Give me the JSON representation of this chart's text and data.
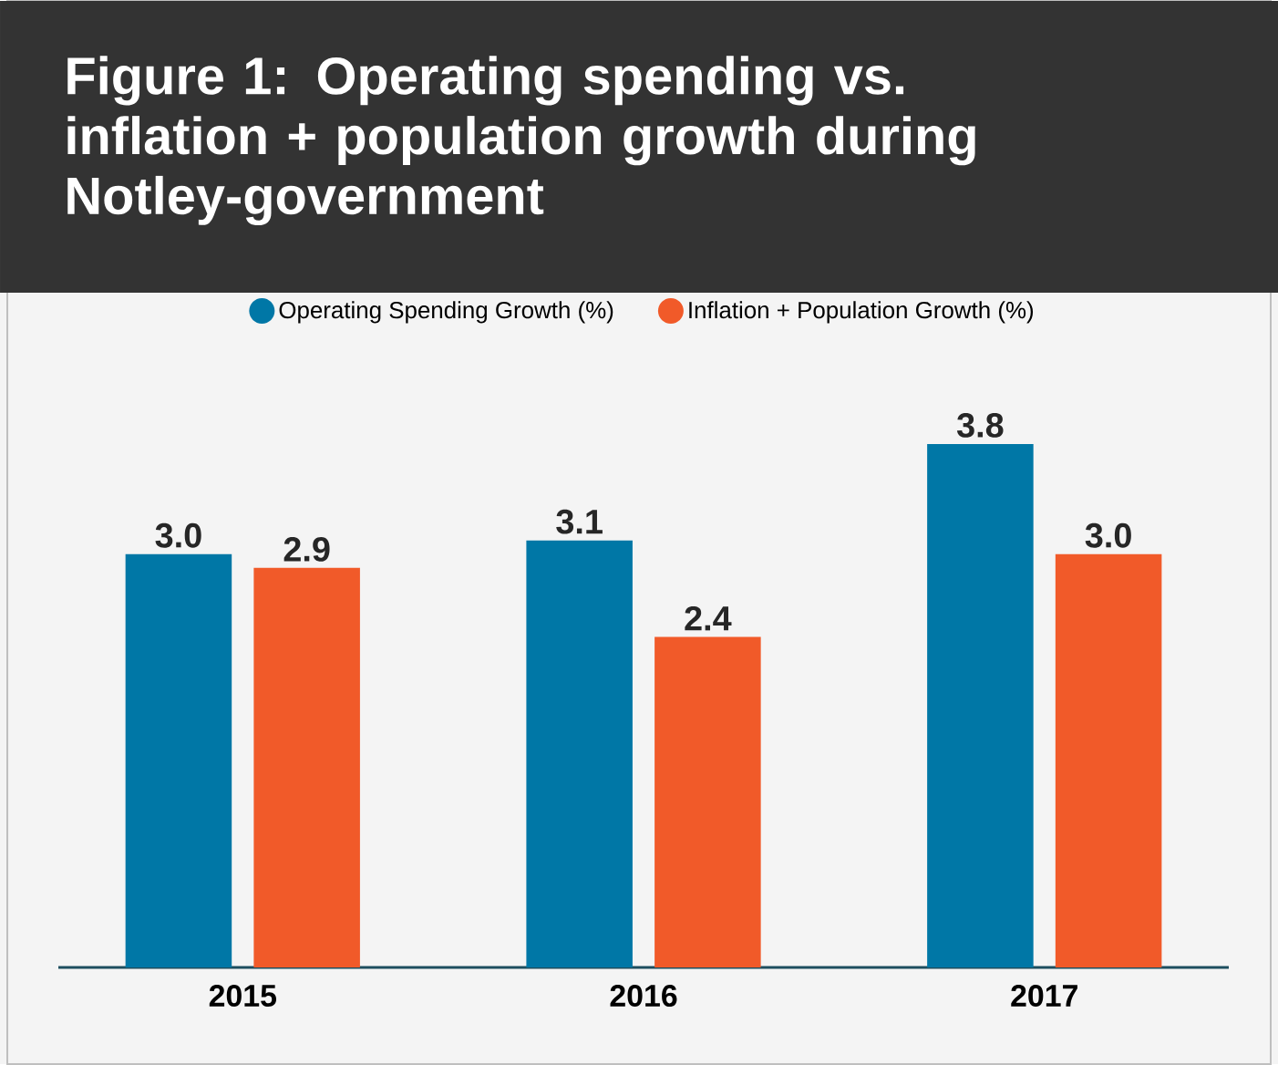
{
  "chart_data": {
    "type": "bar",
    "title": "Figure 1: Operating spending vs. inflation + population growth during Notley-government",
    "categories": [
      "2015",
      "2016",
      "2017"
    ],
    "series": [
      {
        "name": "Operating Spending Growth (%)",
        "color": "#0077a6",
        "values": [
          3.0,
          3.1,
          3.8
        ],
        "value_labels": [
          "3.0",
          "3.1",
          "3.8"
        ]
      },
      {
        "name": "Inflation + Population Growth (%)",
        "color": "#f15a29",
        "values": [
          2.9,
          2.4,
          3.0
        ],
        "value_labels": [
          "2.9",
          "2.4",
          "3.0"
        ]
      }
    ],
    "legend": "top"
  }
}
